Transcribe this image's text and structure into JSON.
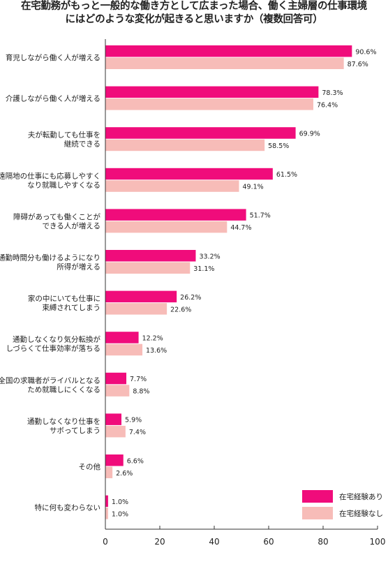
{
  "title_lines": [
    "在宅勤務がもっと一般的な働き方として広まった場合、働く主婦層の仕事環境",
    "にはどのような変化が起きると思いますか（複数回答可）"
  ],
  "colors": {
    "with_experience": "#f00c7b",
    "without_experience": "#f7bcb8",
    "axis": "#333333"
  },
  "chart_data": {
    "type": "bar",
    "orientation": "horizontal",
    "title": "在宅勤務がもっと一般的な働き方として広まった場合、働く主婦層の仕事環境にはどのような変化が起きると思いますか（複数回答可）",
    "categories": [
      [
        "育児しながら働く人が増える"
      ],
      [
        "介護しながら働く人が増える"
      ],
      [
        "夫が転勤しても仕事を",
        "継続できる"
      ],
      [
        "遠隔地の仕事にも応募しやすく",
        "なり就職しやすくなる"
      ],
      [
        "障碍があっても働くことが",
        "できる人が増える"
      ],
      [
        "通勤時間分も働けるようになり",
        "所得が増える"
      ],
      [
        "家の中にいても仕事に",
        "束縛されてしまう"
      ],
      [
        "通勤しなくなり気分転換が",
        "しづらくて仕事効率が落ちる"
      ],
      [
        "全国の求職者がライバルとなる",
        "ため就職しにくくなる"
      ],
      [
        "通勤しなくなり仕事を",
        "サボってしまう"
      ],
      [
        "その他"
      ],
      [
        "特に何も変わらない"
      ]
    ],
    "series": [
      {
        "name": "在宅経験あり",
        "values": [
          90.6,
          78.3,
          69.9,
          61.5,
          51.7,
          33.2,
          26.2,
          12.2,
          7.7,
          5.9,
          6.6,
          1.0
        ]
      },
      {
        "name": "在宅経験なし",
        "values": [
          87.6,
          76.4,
          58.5,
          49.1,
          44.7,
          31.1,
          22.6,
          13.6,
          8.8,
          7.4,
          2.6,
          1.0
        ]
      }
    ],
    "value_suffix": "%",
    "xlim": [
      0,
      100
    ],
    "xticks": [
      0,
      20,
      40,
      60,
      80,
      100
    ],
    "grid": false,
    "legend_position": "bottom-right"
  }
}
